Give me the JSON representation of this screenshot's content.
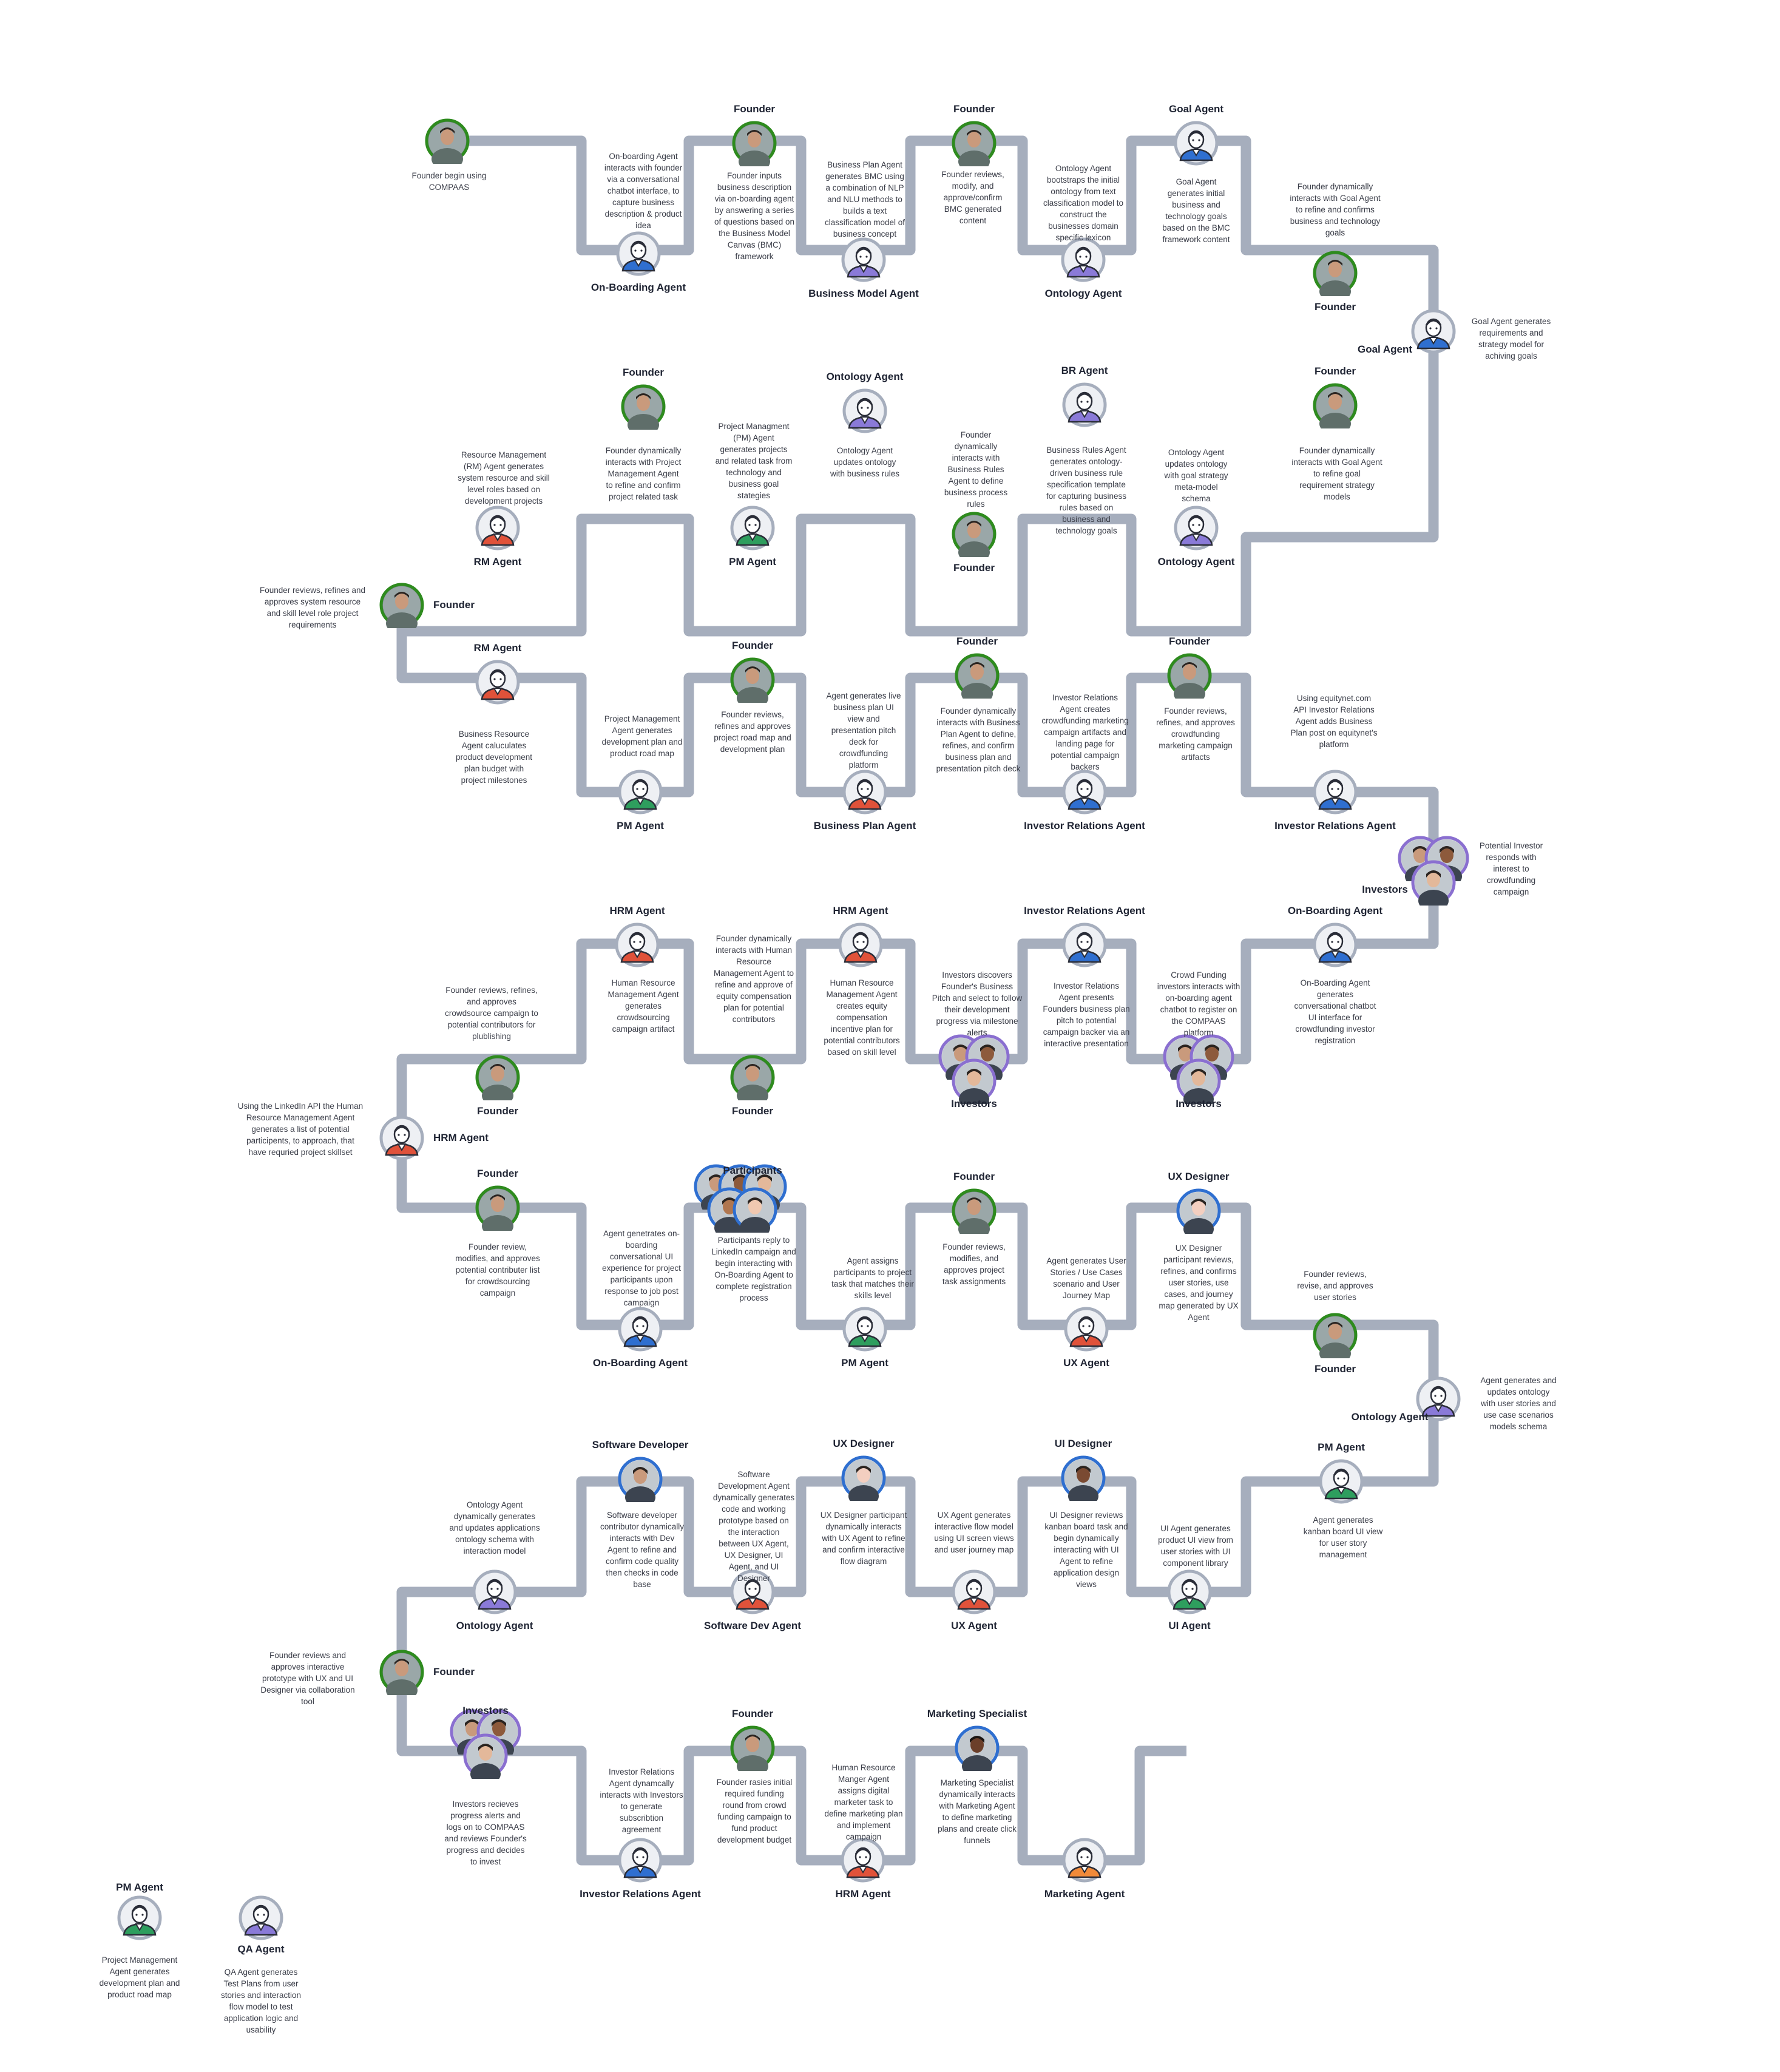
{
  "nodes": [
    {
      "id": "n1",
      "label": "",
      "kind": "founder",
      "desc": "Founder begin using COMPAAS"
    },
    {
      "id": "n2",
      "label": "On-Boarding Agent",
      "kind": "agent",
      "color": "#2f6fd0",
      "desc": "On-boarding Agent interacts with founder via a conversational chatbot interface, to capture business description & product idea"
    },
    {
      "id": "n3",
      "label": "Founder",
      "kind": "founder",
      "desc": "Founder inputs business description via on-boarding agent by answering a series of questions based on the Business Model Canvas (BMC) framework"
    },
    {
      "id": "n4",
      "label": "Business Model Agent",
      "kind": "agent",
      "color": "#8a7ad8",
      "desc": "Business Plan Agent generates BMC using a combination of NLP and NLU methods to builds a text classification model of business concept"
    },
    {
      "id": "n5",
      "label": "Founder",
      "kind": "founder",
      "desc": "Founder reviews, modify, and approve/confirm BMC generated content"
    },
    {
      "id": "n6",
      "label": "Ontology Agent",
      "kind": "agent",
      "color": "#8a7ad8",
      "desc": "Ontology Agent bootstraps the initial ontology from text classification model to construct the businesses domain specific lexicon"
    },
    {
      "id": "n7",
      "label": "Goal Agent",
      "kind": "agent",
      "color": "#2f6fd0",
      "desc": "Goal Agent generates initial business and technology goals based on the BMC framework content"
    },
    {
      "id": "n8",
      "label": "Founder",
      "kind": "founder",
      "desc": "Founder dynamically interacts with Goal Agent to refine and confirms business and technology goals"
    },
    {
      "id": "n9",
      "label": "Goal Agent",
      "kind": "agent",
      "color": "#2f6fd0",
      "desc": "Goal Agent generates requirements and strategy model for achiving goals"
    },
    {
      "id": "n10",
      "label": "Founder",
      "kind": "founder",
      "desc": "Founder dynamically interacts with Goal Agent to refine goal requirement strategy models"
    },
    {
      "id": "n11",
      "label": "Ontology Agent",
      "kind": "agent",
      "color": "#8a7ad8",
      "desc": "Ontology Agent updates ontology with goal strategy meta-model schema"
    },
    {
      "id": "n12",
      "label": "BR Agent",
      "kind": "agent",
      "color": "#8a7ad8",
      "desc": "Business Rules Agent generates ontology-driven business rule specification template for capturing business rules based on business and technology goals"
    },
    {
      "id": "n13",
      "label": "Founder",
      "kind": "founder",
      "desc": "Founder dynamically interacts with Business Rules Agent to define business process rules"
    },
    {
      "id": "n14",
      "label": "Ontology Agent",
      "kind": "agent",
      "color": "#8a7ad8",
      "desc": "Ontology Agent updates ontology with business rules"
    },
    {
      "id": "n15",
      "label": "PM Agent",
      "kind": "agent",
      "color": "#2e9e5e",
      "desc": "Project Managment (PM) Agent generates projects and related task from technology and business goal stategies"
    },
    {
      "id": "n16",
      "label": "Founder",
      "kind": "founder",
      "desc": "Founder dynamically interacts with Project Management Agent to refine and confirm project related task"
    },
    {
      "id": "n17",
      "label": "RM Agent",
      "kind": "agent",
      "color": "#e0523a",
      "desc": "Resource Management (RM) Agent generates system resource and skill level roles based on development projects"
    },
    {
      "id": "n18",
      "label": "Founder",
      "kind": "founder",
      "desc": "Founder reviews, refines and approves system resource and skill level role project requirements"
    },
    {
      "id": "n19",
      "label": "RM Agent",
      "kind": "agent",
      "color": "#e0523a",
      "desc": "Business Resource Agent caluculates product development plan budget with project milestones"
    },
    {
      "id": "n20",
      "label": "PM Agent",
      "kind": "agent",
      "color": "#2e9e5e",
      "desc": "Project Management Agent generates development plan and product road map"
    },
    {
      "id": "n21",
      "label": "Founder",
      "kind": "founder",
      "desc": "Founder reviews, refines and approves project road map and development plan"
    },
    {
      "id": "n22",
      "label": "Business Plan Agent",
      "kind": "agent",
      "color": "#e0523a",
      "desc": "Agent generates live business plan UI view and presentation pitch deck for crowdfunding platform"
    },
    {
      "id": "n23",
      "label": "Founder",
      "kind": "founder",
      "desc": "Founder dynamically interacts with Business Plan Agent to define, refines, and confirm business plan and presentation pitch deck"
    },
    {
      "id": "n24",
      "label": "Investor Relations Agent",
      "kind": "agent",
      "color": "#2f6fd0",
      "desc": "Investor Relations Agent creates crowdfunding marketing campaign artifacts and landing page for potential campaign backers"
    },
    {
      "id": "n25",
      "label": "Founder",
      "kind": "founder",
      "desc": "Founder reviews, refines, and approves crowdfunding marketing campaign artifacts"
    },
    {
      "id": "n26",
      "label": "Investor Relations Agent",
      "kind": "agent",
      "color": "#2f6fd0",
      "desc": "Using equitynet.com API Investor Relations Agent adds Business Plan post on equitynet's platform"
    },
    {
      "id": "n27",
      "label": "Investors",
      "kind": "investors",
      "desc": "Potential Investor responds with interest to crowdfunding campaign"
    },
    {
      "id": "n28",
      "label": "On-Boarding Agent",
      "kind": "agent",
      "color": "#2f6fd0",
      "desc": "On-Boarding Agent generates conversational chatbot UI interface for crowdfunding investor registration"
    },
    {
      "id": "n29",
      "label": "Investors",
      "kind": "investors",
      "desc": "Crowd Funding investors interacts with on-boarding agent chatbot to register on the COMPAAS platform"
    },
    {
      "id": "n30",
      "label": "Investor Relations Agent",
      "kind": "agent",
      "color": "#2f6fd0",
      "desc": "Investor Relations Agent presents Founders business plan pitch to potential campaign backer via an interactive presentation"
    },
    {
      "id": "n31",
      "label": "Investors",
      "kind": "investors",
      "desc": "Investors discovers Founder's Business Pitch and select to follow their development progress via milestone alerts"
    },
    {
      "id": "n32",
      "label": "HRM Agent",
      "kind": "agent",
      "color": "#e0523a",
      "desc": "Human Resource Management Agent creates equity compensation incentive plan for potential contributors based on skill level"
    },
    {
      "id": "n33",
      "label": "Founder",
      "kind": "founder",
      "desc": "Founder dynamically interacts with Human Resource Management Agent to refine and approve of equity compensation plan for potential contributors"
    },
    {
      "id": "n34",
      "label": "HRM Agent",
      "kind": "agent",
      "color": "#e0523a",
      "desc": "Human Resource Management Agent generates crowdsourcing campaign artifact"
    },
    {
      "id": "n35",
      "label": "Founder",
      "kind": "founder",
      "desc": "Founder reviews, refines, and approves crowdsource campaign to potential contributors for plublishing"
    },
    {
      "id": "n36",
      "label": "HRM Agent",
      "kind": "agent",
      "color": "#e0523a",
      "desc": "Using the LinkedIn API the Human Resource Management Agent generates a list of potential participents, to approach, that have requried project skillset"
    },
    {
      "id": "n37",
      "label": "Founder",
      "kind": "founder",
      "desc": "Founder review, modifies, and approves potential contributer list for crowdsourcing campaign"
    },
    {
      "id": "n38",
      "label": "On-Boarding Agent",
      "kind": "agent",
      "color": "#2f6fd0",
      "desc": "Agent genetrates on-boarding conversational UI experience for project participants upon response to job post campaign"
    },
    {
      "id": "n39",
      "label": "Participants",
      "kind": "participants",
      "desc": "Participants reply to LinkedIn campaign and begin interacting with On-Boarding Agent to complete registration process"
    },
    {
      "id": "n40",
      "label": "PM Agent",
      "kind": "agent",
      "color": "#2e9e5e",
      "desc": "Agent assigns participants to project task that matches their skills level"
    },
    {
      "id": "n41",
      "label": "Founder",
      "kind": "founder",
      "desc": "Founder reviews, modifies, and approves project task assignments"
    },
    {
      "id": "n42",
      "label": "UX Agent",
      "kind": "agent",
      "color": "#e0523a",
      "desc": "Agent generates User Stories / Use Cases scenario and User Journey Map"
    },
    {
      "id": "n43",
      "label": "UX Designer",
      "kind": "designer",
      "desc": "UX Designer participant reviews, refines, and confirms user stories, use cases, and journey map generated by UX Agent"
    },
    {
      "id": "n44",
      "label": "Founder",
      "kind": "founder",
      "desc": "Founder reviews, revise, and approves user stories"
    },
    {
      "id": "n45",
      "label": "Ontology Agent",
      "kind": "agent",
      "color": "#8a7ad8",
      "desc": "Agent generates and updates ontology with user stories and use case scenarios models schema"
    },
    {
      "id": "n46",
      "label": "PM Agent",
      "kind": "agent",
      "color": "#2e9e5e",
      "desc": "Agent generates kanban board UI view for user story management"
    },
    {
      "id": "n47",
      "label": "UI Agent",
      "kind": "agent",
      "color": "#2e9e5e",
      "desc": "UI Agent generates product UI view from user stories with UI component library"
    },
    {
      "id": "n48",
      "label": "UI Designer",
      "kind": "designer2",
      "desc": "UI Designer reviews kanban board task and begin dynamically interacting with UI Agent to refine application design views"
    },
    {
      "id": "n49",
      "label": "UX Agent",
      "kind": "agent",
      "color": "#e0523a",
      "desc": "UX Agent generates interactive flow model using UI screen views and user journey map"
    },
    {
      "id": "n50",
      "label": "UX Designer",
      "kind": "designer",
      "desc": "UX Designer participant dynamically interacts with UX Agent to refine and confirm interactive flow diagram"
    },
    {
      "id": "n51",
      "label": "Software Dev Agent",
      "kind": "agent",
      "color": "#e0523a",
      "desc": "Software Development Agent dynamically generates code and working prototype based on the interaction between UX Agent, UX Designer, UI Agent, and UI Designer"
    },
    {
      "id": "n52",
      "label": "Software Developer",
      "kind": "developer",
      "desc": "Software developer contributor dynamically interacts with Dev Agent to refine and confirm code quality then checks in code base"
    },
    {
      "id": "n53",
      "label": "Ontology Agent",
      "kind": "agent",
      "color": "#8a7ad8",
      "desc": "Ontology Agent dynamically generates and updates applications ontology schema with interaction model"
    },
    {
      "id": "n54",
      "label": "Founder",
      "kind": "founder",
      "desc": "Founder reviews and approves interactive prototype with UX and UI Designer via collaboration tool"
    },
    {
      "id": "n55",
      "label": "Investors",
      "kind": "investors",
      "desc": "Investors recieves progress alerts and logs on to COMPAAS and reviews Founder's progress and decides to invest"
    },
    {
      "id": "n56",
      "label": "Investor Relations Agent",
      "kind": "agent",
      "color": "#2f6fd0",
      "desc": "Investor Relations Agent dynamcally interacts with Investors to generate subscribtion agreement"
    },
    {
      "id": "n57",
      "label": "Founder",
      "kind": "founder",
      "desc": "Founder rasies initial required funding round from crowd funding campaign to fund product development budget"
    },
    {
      "id": "n58",
      "label": "HRM Agent",
      "kind": "agent",
      "color": "#e0523a",
      "desc": "Human Resource Manger Agent assigns digital marketer task to define marketing plan and implement campaign"
    },
    {
      "id": "n59",
      "label": "Marketing Specialist",
      "kind": "marketer",
      "desc": "Marketing Specialist dynamically interacts with Marketing Agent to define marketing plans and create click funnels"
    },
    {
      "id": "n60",
      "label": "Marketing Agent",
      "kind": "agent",
      "color": "#f08a3a",
      "desc": ""
    }
  ],
  "legend": [
    {
      "label": "PM Agent",
      "color": "#2e9e5e",
      "desc": "Project Management Agent generates development plan and product road map"
    },
    {
      "label": "QA Agent",
      "color": "#8a7ad8",
      "desc": "QA Agent generates Test Plans from user stories and interaction flow model to test application logic and usability"
    }
  ],
  "colors": {
    "path": "#a6aebd",
    "founder_ring": "#2e8b1e",
    "investor_ring": "#8a6fd0",
    "text": "#3a3d48",
    "label": "#1f2433"
  }
}
